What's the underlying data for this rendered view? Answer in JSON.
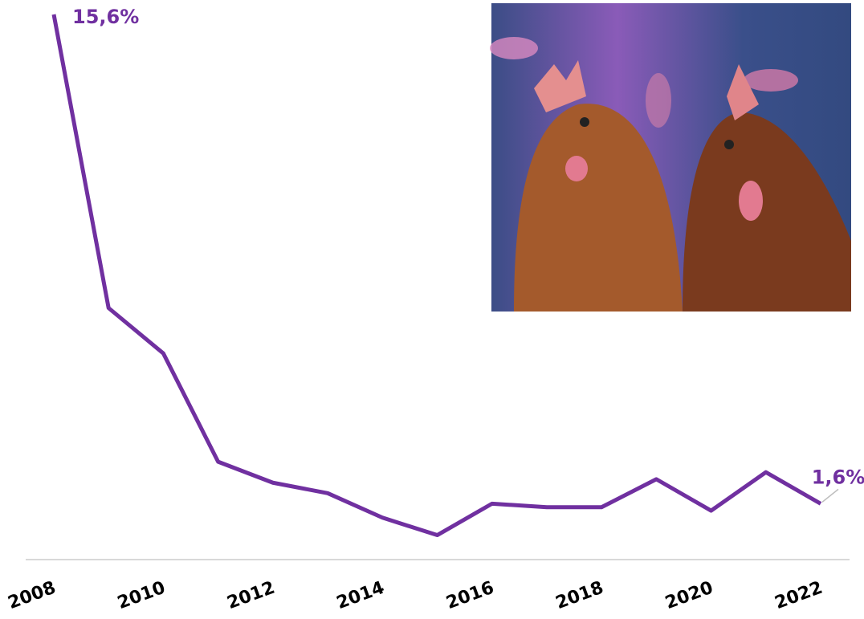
{
  "chart_data": {
    "type": "line",
    "x": [
      2008,
      2009,
      2010,
      2011,
      2012,
      2013,
      2014,
      2015,
      2016,
      2017,
      2018,
      2019,
      2020,
      2021,
      2022
    ],
    "xlim": [
      2008,
      2022
    ],
    "xticks": [
      2008,
      2010,
      2012,
      2014,
      2016,
      2018,
      2020,
      2022
    ],
    "series": [
      {
        "color": "#7030a0",
        "values": [
          15.6,
          7.2,
          5.9,
          2.8,
          2.2,
          1.9,
          1.2,
          0.7,
          1.6,
          1.5,
          1.5,
          2.3,
          1.4,
          2.5,
          1.6
        ],
        "value_labels": [
          "15,6%",
          null,
          null,
          null,
          null,
          null,
          null,
          null,
          null,
          null,
          null,
          null,
          null,
          null,
          "1,6%"
        ]
      }
    ]
  }
}
